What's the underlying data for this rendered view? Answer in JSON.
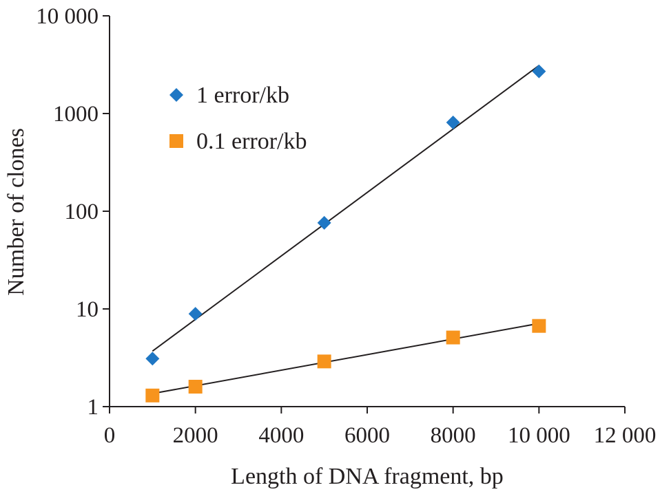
{
  "chart_data": {
    "type": "scatter",
    "xlabel": "Length of DNA fragment, bp",
    "ylabel": "Number of clones",
    "xlim": [
      0,
      12000
    ],
    "ylim": [
      1,
      10000
    ],
    "yscale": "log",
    "xticks": [
      0,
      2000,
      4000,
      6000,
      8000,
      10000,
      12000
    ],
    "xtick_labels": [
      "0",
      "2000",
      "4000",
      "6000",
      "8000",
      "10 000",
      "12 000"
    ],
    "yticks": [
      1,
      10,
      100,
      1000,
      10000
    ],
    "ytick_labels": [
      "1",
      "10",
      "100",
      "1000",
      "10 000"
    ],
    "grid": false,
    "legend_placement": "top-left",
    "series": [
      {
        "name": "1 error/kb",
        "marker": "diamond",
        "color": "#1f77c4",
        "x": [
          1000,
          2000,
          5000,
          8000,
          10000
        ],
        "y": [
          3.1,
          8.9,
          76,
          810,
          2700
        ],
        "fit": {
          "x": [
            1000,
            10000
          ],
          "y": [
            3.7,
            3100
          ]
        }
      },
      {
        "name": "0.1 error/kb",
        "marker": "square",
        "color": "#f7941d",
        "x": [
          1000,
          2000,
          5000,
          8000,
          10000
        ],
        "y": [
          1.3,
          1.6,
          2.9,
          5.1,
          6.7
        ],
        "fit": {
          "x": [
            1000,
            10000
          ],
          "y": [
            1.36,
            7.1
          ]
        }
      }
    ]
  }
}
